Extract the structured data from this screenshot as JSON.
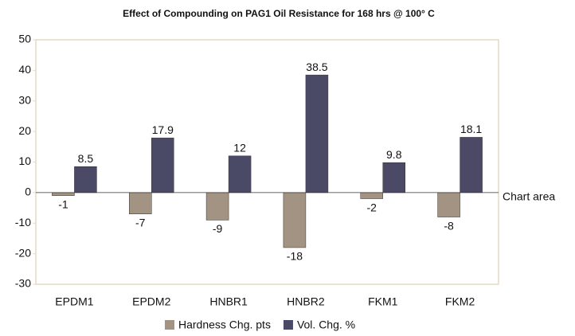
{
  "chart_data": {
    "type": "bar",
    "title": "Effect of Compounding on PAG1 Oil Resistance for 168 hrs @ 100° C",
    "annotation": "Chart area",
    "categories": [
      "EPDM1",
      "EPDM2",
      "HNBR1",
      "HNBR2",
      "FKM1",
      "FKM2"
    ],
    "series": [
      {
        "name": "Hardness Chg. pts",
        "color": "#a39382",
        "values": [
          -1,
          -7,
          -9,
          -18,
          -2,
          -8
        ]
      },
      {
        "name": "Vol. Chg. %",
        "color": "#4b4a66",
        "values": [
          8.5,
          17.9,
          12,
          38.5,
          9.8,
          18.1
        ]
      }
    ],
    "ylim": [
      -30,
      50
    ],
    "yticks": [
      -30,
      -20,
      -10,
      0,
      10,
      20,
      30,
      40,
      50
    ],
    "grid": false,
    "legend": "bottom"
  }
}
